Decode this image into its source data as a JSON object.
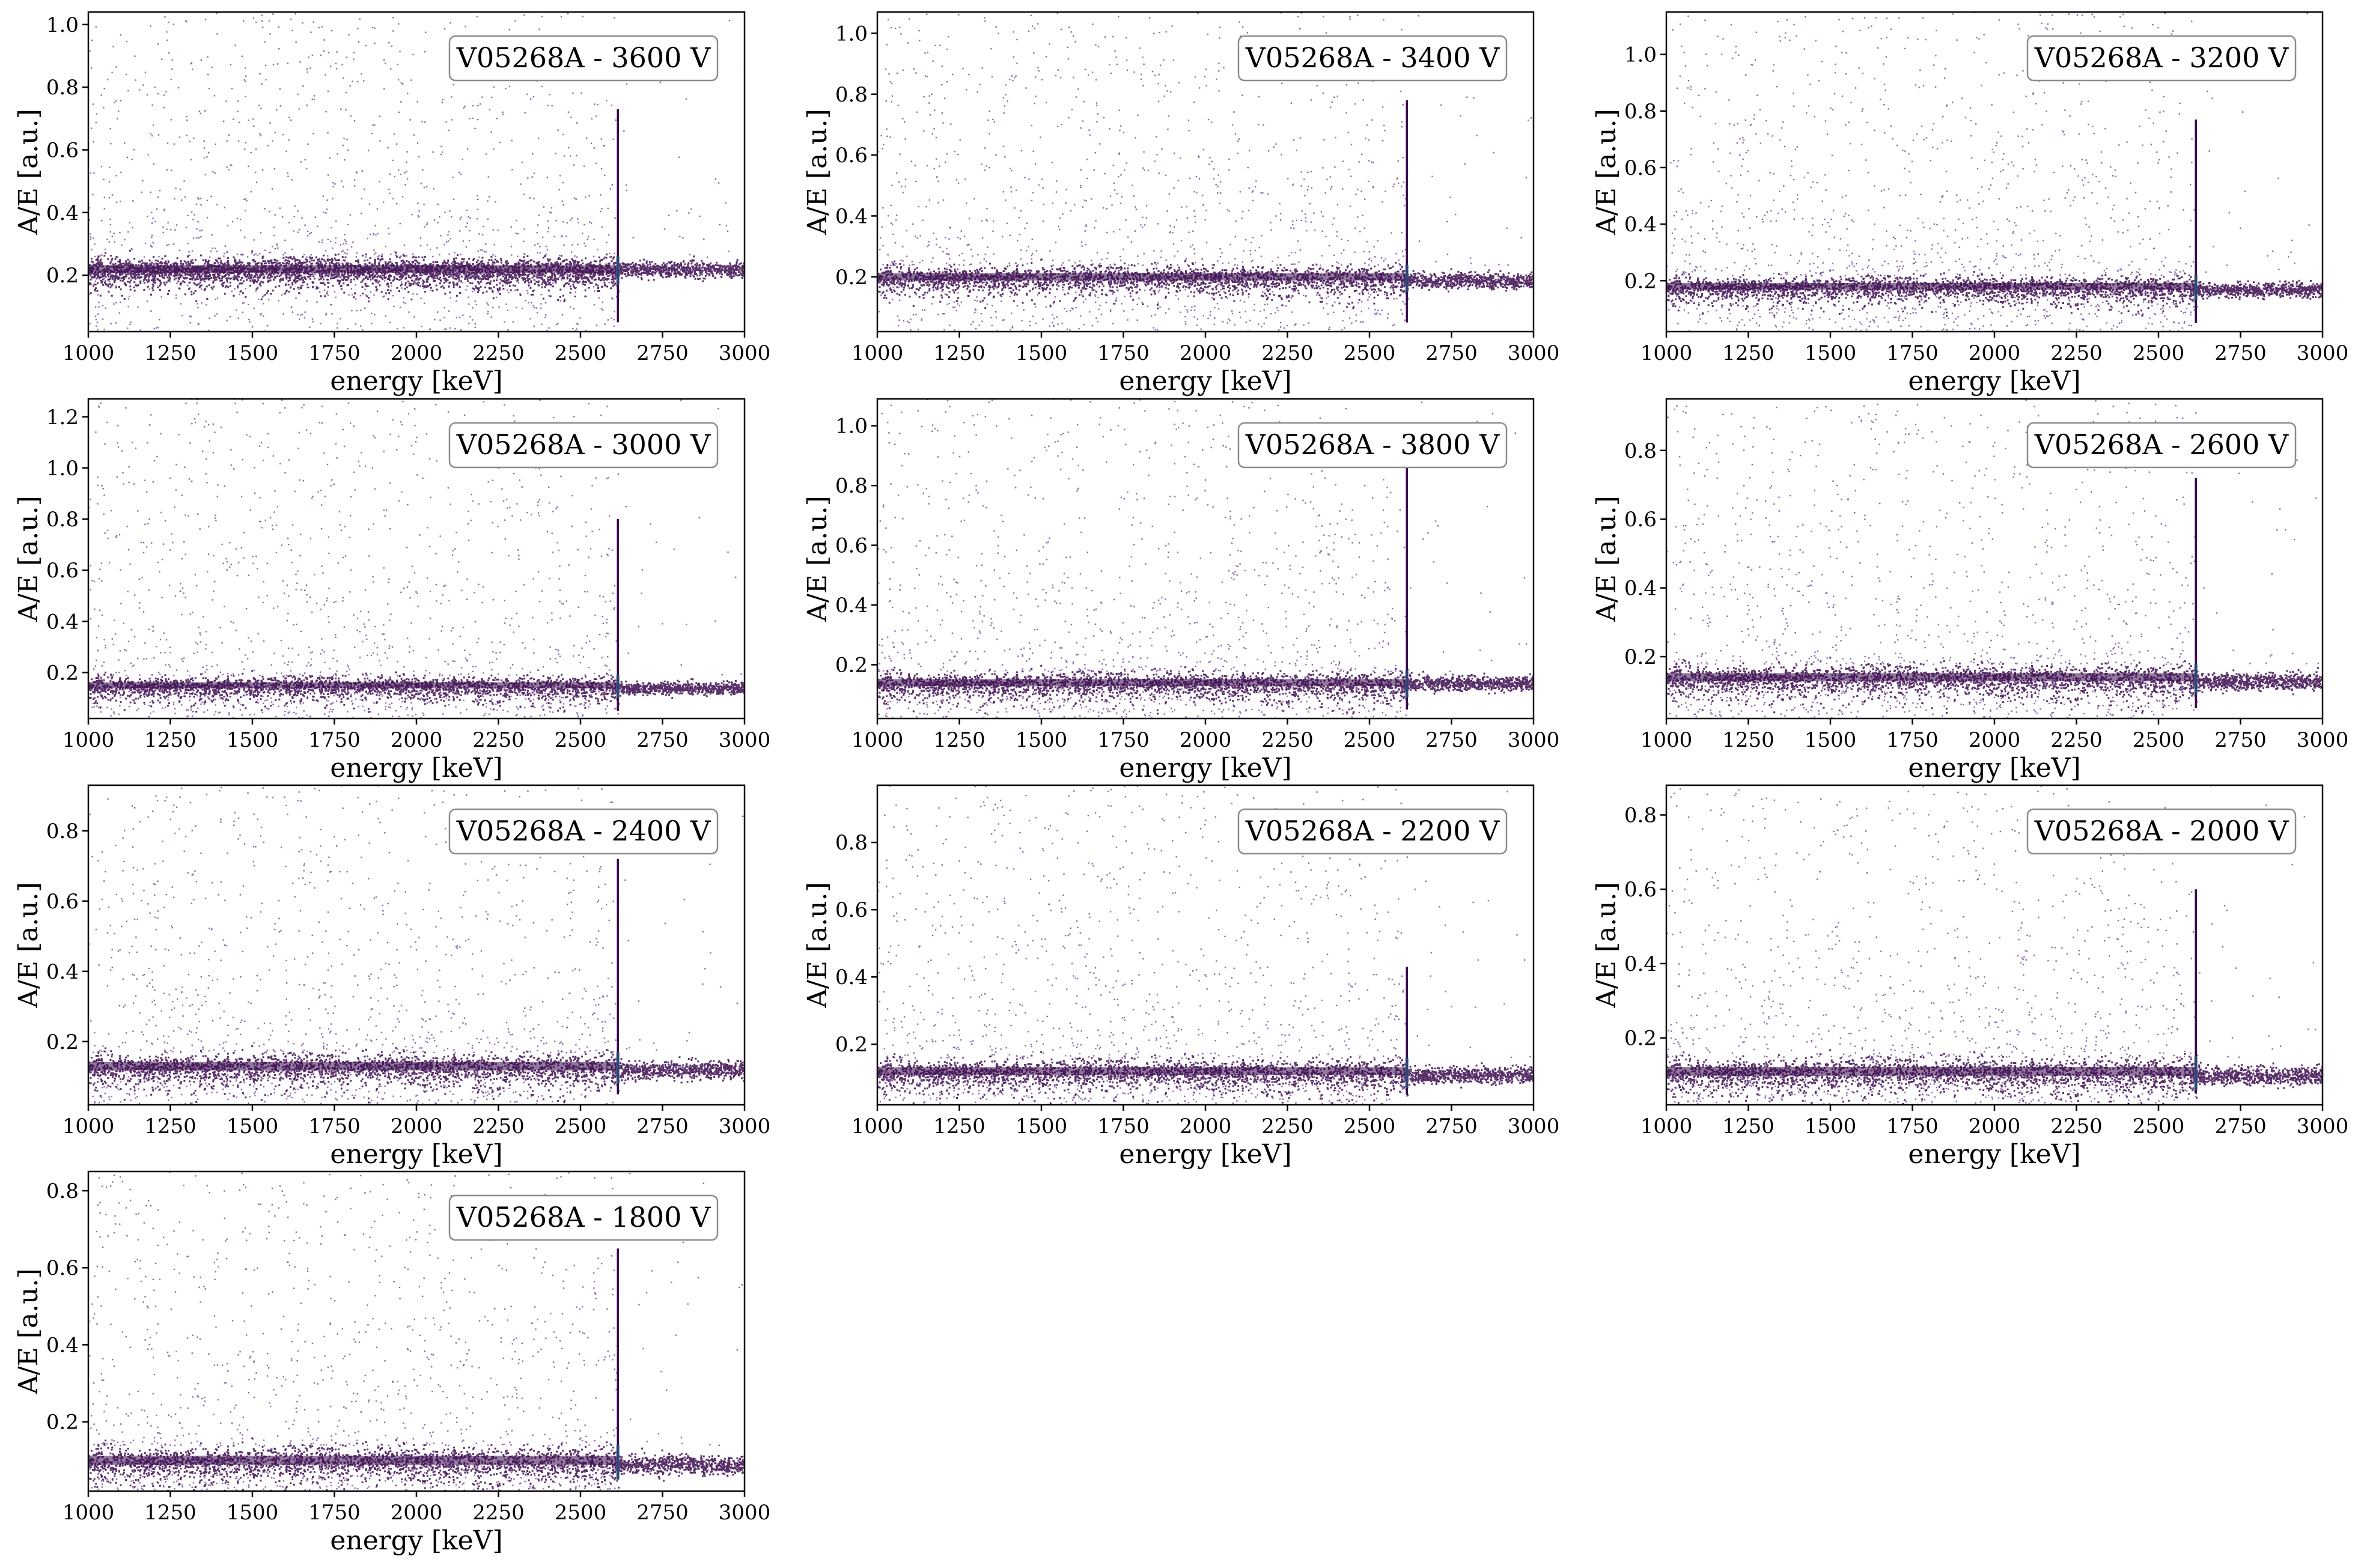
{
  "colors": {
    "band": "#3b0a4f",
    "band_core": "#3a0b4e",
    "scatter": "#5d2a86",
    "peak_mark": "#2f6c8e",
    "legend_edge": "#8c8c8c"
  },
  "chart_data": [
    {
      "type": "scatter",
      "title": "V05268A - 3600 V",
      "xlabel": "energy [keV]",
      "ylabel": "A/E [a.u.]",
      "xlim": [
        1000,
        3000
      ],
      "ylim": [
        0.02,
        1.04
      ],
      "x_ticks": [
        "1000",
        "1250",
        "1500",
        "1750",
        "2000",
        "2250",
        "2500",
        "2750",
        "3000"
      ],
      "y_ticks": [
        "0.2",
        "0.4",
        "0.6",
        "0.8",
        "1.0"
      ],
      "y_tick_values": [
        0.2,
        0.4,
        0.6,
        0.8,
        1.0
      ],
      "band_center": 0.22,
      "band_center_above_peak": 0.22,
      "peak_energy": 2614,
      "peak_top": 0.73,
      "legend": "top-right"
    },
    {
      "type": "scatter",
      "title": "V05268A - 3400 V",
      "xlabel": "energy [keV]",
      "ylabel": "A/E [a.u.]",
      "xlim": [
        1000,
        3000
      ],
      "ylim": [
        0.02,
        1.07
      ],
      "x_ticks": [
        "1000",
        "1250",
        "1500",
        "1750",
        "2000",
        "2250",
        "2500",
        "2750",
        "3000"
      ],
      "y_ticks": [
        "0.2",
        "0.4",
        "0.6",
        "0.8",
        "1.0"
      ],
      "y_tick_values": [
        0.2,
        0.4,
        0.6,
        0.8,
        1.0
      ],
      "band_center": 0.2,
      "band_center_above_peak": 0.19,
      "peak_energy": 2614,
      "peak_top": 0.78,
      "legend": "top-right"
    },
    {
      "type": "scatter",
      "title": "V05268A - 3200 V",
      "xlabel": "energy [keV]",
      "ylabel": "A/E [a.u.]",
      "xlim": [
        1000,
        3000
      ],
      "ylim": [
        0.02,
        1.15
      ],
      "x_ticks": [
        "1000",
        "1250",
        "1500",
        "1750",
        "2000",
        "2250",
        "2500",
        "2750",
        "3000"
      ],
      "y_ticks": [
        "0.2",
        "0.4",
        "0.6",
        "0.8",
        "1.0"
      ],
      "y_tick_values": [
        0.2,
        0.4,
        0.6,
        0.8,
        1.0
      ],
      "band_center": 0.18,
      "band_center_above_peak": 0.17,
      "peak_energy": 2614,
      "peak_top": 0.77,
      "legend": "top-right"
    },
    {
      "type": "scatter",
      "title": "V05268A - 3000 V",
      "xlabel": "energy [keV]",
      "ylabel": "A/E [a.u.]",
      "xlim": [
        1000,
        3000
      ],
      "ylim": [
        0.02,
        1.27
      ],
      "x_ticks": [
        "1000",
        "1250",
        "1500",
        "1750",
        "2000",
        "2250",
        "2500",
        "2750",
        "3000"
      ],
      "y_ticks": [
        "0.2",
        "0.4",
        "0.6",
        "0.8",
        "1.0",
        "1.2"
      ],
      "y_tick_values": [
        0.2,
        0.4,
        0.6,
        0.8,
        1.0,
        1.2
      ],
      "band_center": 0.15,
      "band_center_above_peak": 0.14,
      "peak_energy": 2614,
      "peak_top": 0.8,
      "legend": "top-right"
    },
    {
      "type": "scatter",
      "title": "V05268A - 3800 V",
      "xlabel": "energy [keV]",
      "ylabel": "A/E [a.u.]",
      "xlim": [
        1000,
        3000
      ],
      "ylim": [
        0.02,
        1.09
      ],
      "x_ticks": [
        "1000",
        "1250",
        "1500",
        "1750",
        "2000",
        "2250",
        "2500",
        "2750",
        "3000"
      ],
      "y_ticks": [
        "0.2",
        "0.4",
        "0.6",
        "0.8",
        "1.0"
      ],
      "y_tick_values": [
        0.2,
        0.4,
        0.6,
        0.8,
        1.0
      ],
      "band_center": 0.14,
      "band_center_above_peak": 0.14,
      "peak_energy": 2614,
      "peak_top": 0.96,
      "legend": "top-right"
    },
    {
      "type": "scatter",
      "title": "V05268A - 2600 V",
      "xlabel": "energy [keV]",
      "ylabel": "A/E [a.u.]",
      "xlim": [
        1000,
        3000
      ],
      "ylim": [
        0.02,
        0.95
      ],
      "x_ticks": [
        "1000",
        "1250",
        "1500",
        "1750",
        "2000",
        "2250",
        "2500",
        "2750",
        "3000"
      ],
      "y_ticks": [
        "0.2",
        "0.4",
        "0.6",
        "0.8"
      ],
      "y_tick_values": [
        0.2,
        0.4,
        0.6,
        0.8
      ],
      "band_center": 0.14,
      "band_center_above_peak": 0.13,
      "peak_energy": 2614,
      "peak_top": 0.72,
      "legend": "top-right"
    },
    {
      "type": "scatter",
      "title": "V05268A - 2400 V",
      "xlabel": "energy [keV]",
      "ylabel": "A/E [a.u.]",
      "xlim": [
        1000,
        3000
      ],
      "ylim": [
        0.02,
        0.93
      ],
      "x_ticks": [
        "1000",
        "1250",
        "1500",
        "1750",
        "2000",
        "2250",
        "2500",
        "2750",
        "3000"
      ],
      "y_ticks": [
        "0.2",
        "0.4",
        "0.6",
        "0.8"
      ],
      "y_tick_values": [
        0.2,
        0.4,
        0.6,
        0.8
      ],
      "band_center": 0.13,
      "band_center_above_peak": 0.12,
      "peak_energy": 2614,
      "peak_top": 0.72,
      "legend": "top-right"
    },
    {
      "type": "scatter",
      "title": "V05268A - 2200 V",
      "xlabel": "energy [keV]",
      "ylabel": "A/E [a.u.]",
      "xlim": [
        1000,
        3000
      ],
      "ylim": [
        0.02,
        0.97
      ],
      "x_ticks": [
        "1000",
        "1250",
        "1500",
        "1750",
        "2000",
        "2250",
        "2500",
        "2750",
        "3000"
      ],
      "y_ticks": [
        "0.2",
        "0.4",
        "0.6",
        "0.8"
      ],
      "y_tick_values": [
        0.2,
        0.4,
        0.6,
        0.8
      ],
      "band_center": 0.12,
      "band_center_above_peak": 0.11,
      "peak_energy": 2614,
      "peak_top": 0.43,
      "legend": "top-right"
    },
    {
      "type": "scatter",
      "title": "V05268A - 2000 V",
      "xlabel": "energy [keV]",
      "ylabel": "A/E [a.u.]",
      "xlim": [
        1000,
        3000
      ],
      "ylim": [
        0.02,
        0.88
      ],
      "x_ticks": [
        "1000",
        "1250",
        "1500",
        "1750",
        "2000",
        "2250",
        "2500",
        "2750",
        "3000"
      ],
      "y_ticks": [
        "0.2",
        "0.4",
        "0.6",
        "0.8"
      ],
      "y_tick_values": [
        0.2,
        0.4,
        0.6,
        0.8
      ],
      "band_center": 0.11,
      "band_center_above_peak": 0.1,
      "peak_energy": 2614,
      "peak_top": 0.6,
      "legend": "top-right"
    },
    {
      "type": "scatter",
      "title": "V05268A - 1800 V",
      "xlabel": "energy [keV]",
      "ylabel": "A/E [a.u.]",
      "xlim": [
        1000,
        3000
      ],
      "ylim": [
        0.02,
        0.85
      ],
      "x_ticks": [
        "1000",
        "1250",
        "1500",
        "1750",
        "2000",
        "2250",
        "2500",
        "2750",
        "3000"
      ],
      "y_ticks": [
        "0.2",
        "0.4",
        "0.6",
        "0.8"
      ],
      "y_tick_values": [
        0.2,
        0.4,
        0.6,
        0.8
      ],
      "band_center": 0.1,
      "band_center_above_peak": 0.09,
      "peak_energy": 2614,
      "peak_top": 0.65,
      "legend": "top-right"
    }
  ]
}
